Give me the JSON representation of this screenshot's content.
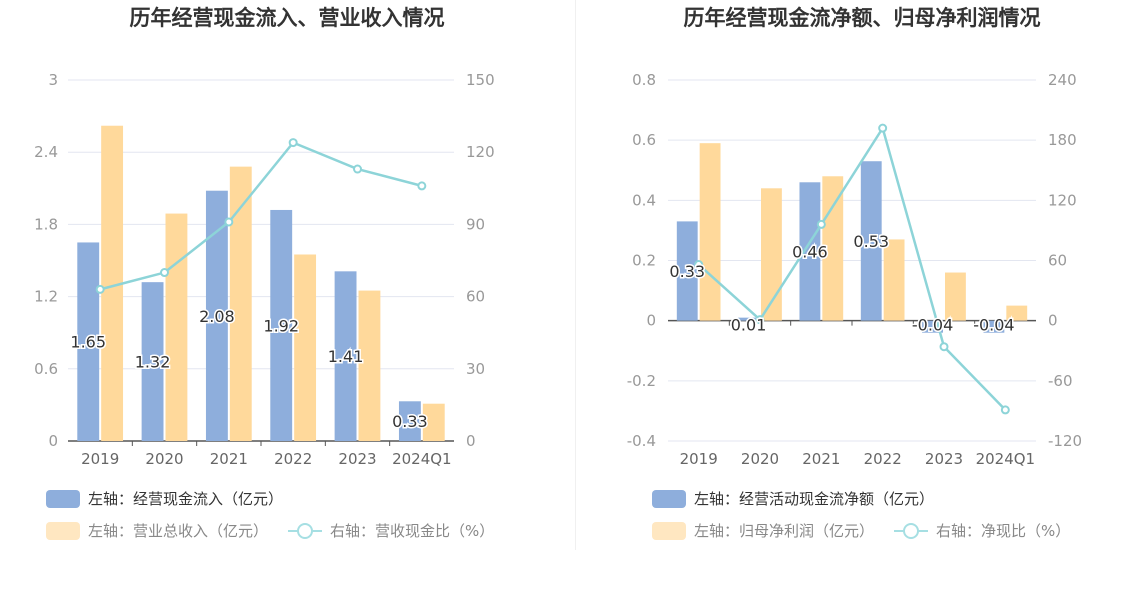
{
  "chart_data": [
    {
      "type": "bar",
      "title": "历年经营现金流入、营业收入情况",
      "categories": [
        "2019",
        "2020",
        "2021",
        "2022",
        "2023",
        "2024Q1"
      ],
      "left_axis": {
        "min": 0,
        "max": 3,
        "ticks": [
          "0",
          "0.6",
          "1.2",
          "1.8",
          "2.4",
          "3"
        ]
      },
      "right_axis": {
        "min": 0,
        "max": 150,
        "ticks": [
          "0",
          "30",
          "60",
          "90",
          "120",
          "150"
        ]
      },
      "grid": true,
      "legend_position": "bottom-left",
      "series": [
        {
          "name": "左轴：经营现金流入（亿元）",
          "kind": "bar",
          "axis": "left",
          "color": "#8eaedc",
          "values": [
            1.65,
            1.32,
            2.08,
            1.92,
            1.41,
            0.33
          ],
          "labels": [
            "1.65",
            "1.32",
            "2.08",
            "1.92",
            "1.41",
            "0.33"
          ]
        },
        {
          "name": "左轴：营业总收入（亿元）",
          "kind": "bar",
          "axis": "left",
          "color": "#ffd99b",
          "values": [
            2.62,
            1.89,
            2.28,
            1.55,
            1.25,
            0.31
          ]
        },
        {
          "name": "右轴：营收现金比（%）",
          "kind": "line",
          "axis": "right",
          "color": "#8dd4d8",
          "values": [
            63,
            70,
            91,
            124,
            113,
            106
          ]
        }
      ]
    },
    {
      "type": "bar",
      "title": "历年经营现金流净额、归母净利润情况",
      "categories": [
        "2019",
        "2020",
        "2021",
        "2022",
        "2023",
        "2024Q1"
      ],
      "left_axis": {
        "min": -0.4,
        "max": 0.8,
        "ticks": [
          "-0.4",
          "-0.2",
          "0",
          "0.2",
          "0.4",
          "0.6",
          "0.8"
        ]
      },
      "right_axis": {
        "min": -120,
        "max": 240,
        "ticks": [
          "-120",
          "-60",
          "0",
          "60",
          "120",
          "180",
          "240"
        ]
      },
      "grid": true,
      "legend_position": "bottom-left",
      "series": [
        {
          "name": "左轴：经营活动现金流净额（亿元）",
          "kind": "bar",
          "axis": "left",
          "color": "#8eaedc",
          "values": [
            0.33,
            0.01,
            0.46,
            0.53,
            -0.04,
            -0.04
          ],
          "labels": [
            "0.33",
            "0.01",
            "0.46",
            "0.53",
            "-0.04",
            "-0.04"
          ]
        },
        {
          "name": "左轴：归母净利润（亿元）",
          "kind": "bar",
          "axis": "left",
          "color": "#ffd99b",
          "values": [
            0.59,
            0.44,
            0.48,
            0.27,
            0.16,
            0.05
          ]
        },
        {
          "name": "右轴：净现比（%）",
          "kind": "line",
          "axis": "right",
          "color": "#8dd4d8",
          "values": [
            56,
            1,
            96,
            192,
            -26,
            -89
          ]
        }
      ]
    }
  ]
}
